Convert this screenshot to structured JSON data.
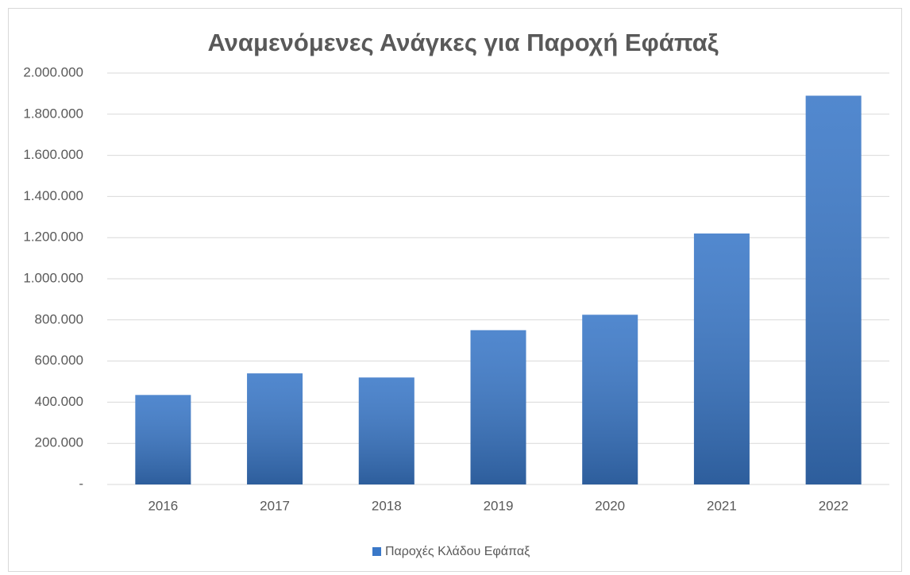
{
  "chart_data": {
    "type": "bar",
    "title": "Αναμενόμενες Ανάγκες για Παροχή Εφάπαξ",
    "categories": [
      "2016",
      "2017",
      "2018",
      "2019",
      "2020",
      "2021",
      "2022"
    ],
    "series": [
      {
        "name": "Παροχές Κλάδου Εφάπαξ",
        "color": "#3a78c8",
        "values": [
          435000,
          540000,
          520000,
          750000,
          825000,
          1220000,
          1890000
        ]
      }
    ],
    "ylim": [
      0,
      2000000
    ],
    "yticks": [
      {
        "value": 0,
        "label": "-"
      },
      {
        "value": 200000,
        "label": "200.000"
      },
      {
        "value": 400000,
        "label": "400.000"
      },
      {
        "value": 600000,
        "label": "600.000"
      },
      {
        "value": 800000,
        "label": "800.000"
      },
      {
        "value": 1000000,
        "label": "1.000.000"
      },
      {
        "value": 1200000,
        "label": "1.200.000"
      },
      {
        "value": 1400000,
        "label": "1.400.000"
      },
      {
        "value": 1600000,
        "label": "1.600.000"
      },
      {
        "value": 1800000,
        "label": "1.800.000"
      },
      {
        "value": 2000000,
        "label": "2.000.000"
      }
    ],
    "grid": true,
    "legend": "bottom"
  }
}
